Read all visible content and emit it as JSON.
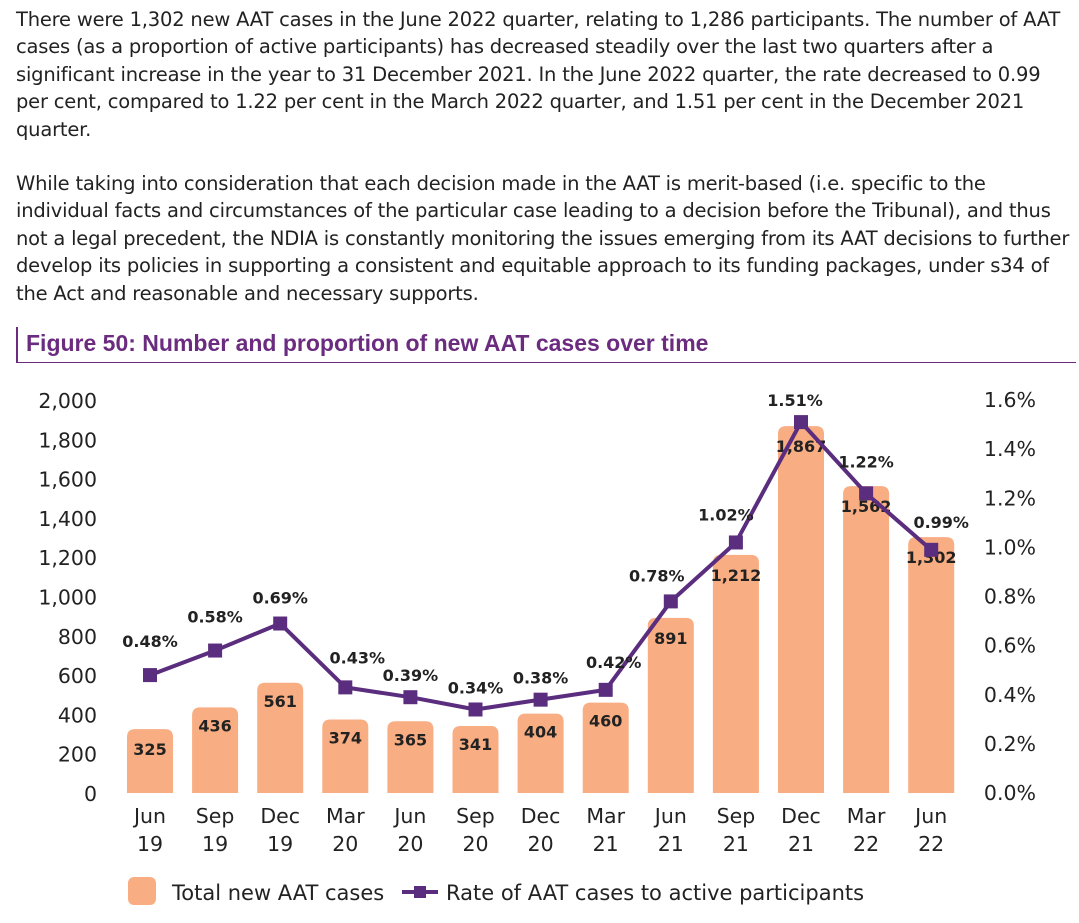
{
  "paragraphs": [
    "There were 1,302 new AAT cases in the June 2022 quarter, relating to 1,286 participants. The number of AAT cases (as a proportion of active participants) has decreased steadily over the last two quarters after a significant increase in the year to 31 December 2021. In the June 2022 quarter, the rate decreased to 0.99 per cent, compared to 1.22 per cent in the March 2022 quarter, and 1.51 per cent in the December 2021 quarter.",
    "While taking into consideration that each decision made in the AAT is merit-based (i.e. specific to the individual facts and circumstances of the particular case leading to a decision before the Tribunal), and thus not a legal precedent, the NDIA is constantly monitoring the issues emerging from its AAT decisions to further develop its policies in supporting a consistent and equitable approach to its funding packages, under s34 of the Act and reasonable and necessary supports."
  ],
  "figure_title": "Figure 50: Number and proportion of new AAT cases over time",
  "colors": {
    "bar": "#f8ad82",
    "line": "#5b2d7e",
    "title": "#6b2c80"
  },
  "chart_data": {
    "type": "bar",
    "categories": [
      [
        "Jun",
        "19"
      ],
      [
        "Sep",
        "19"
      ],
      [
        "Dec",
        "19"
      ],
      [
        "Mar",
        "20"
      ],
      [
        "Jun",
        "20"
      ],
      [
        "Sep",
        "20"
      ],
      [
        "Dec",
        "20"
      ],
      [
        "Mar",
        "21"
      ],
      [
        "Jun",
        "21"
      ],
      [
        "Sep",
        "21"
      ],
      [
        "Dec",
        "21"
      ],
      [
        "Mar",
        "22"
      ],
      [
        "Jun",
        "22"
      ]
    ],
    "series": [
      {
        "name": "Total new AAT cases",
        "type": "bar",
        "axis": "left",
        "values": [
          325,
          436,
          561,
          374,
          365,
          341,
          404,
          460,
          891,
          1212,
          1867,
          1562,
          1302
        ],
        "labels": [
          "325",
          "436",
          "561",
          "374",
          "365",
          "341",
          "404",
          "460",
          "891",
          "1,212",
          "1,867",
          "1,562",
          "1,302"
        ]
      },
      {
        "name": "Rate of AAT cases to active participants",
        "type": "line",
        "axis": "right",
        "values": [
          0.48,
          0.58,
          0.69,
          0.43,
          0.39,
          0.34,
          0.38,
          0.42,
          0.78,
          1.02,
          1.51,
          1.22,
          0.99
        ],
        "labels": [
          "0.48%",
          "0.58%",
          "0.69%",
          "0.43%",
          "0.39%",
          "0.34%",
          "0.38%",
          "0.42%",
          "0.78%",
          "1.02%",
          "1.51%",
          "1.22%",
          "0.99%"
        ]
      }
    ],
    "y_left": {
      "range": [
        0,
        2000
      ],
      "ticks": [
        0,
        200,
        400,
        600,
        800,
        1000,
        1200,
        1400,
        1600,
        1800,
        2000
      ],
      "tick_labels": [
        "0",
        "200",
        "400",
        "600",
        "800",
        "1,000",
        "1,200",
        "1,400",
        "1,600",
        "1,800",
        "2,000"
      ]
    },
    "y_right": {
      "range": [
        0,
        1.6
      ],
      "ticks": [
        0,
        0.2,
        0.4,
        0.6,
        0.8,
        1.0,
        1.2,
        1.4,
        1.6
      ],
      "tick_labels": [
        "0.0%",
        "0.2%",
        "0.4%",
        "0.6%",
        "0.8%",
        "1.0%",
        "1.2%",
        "1.4%",
        "1.6%"
      ]
    },
    "grid": false,
    "legend": "bottom"
  }
}
